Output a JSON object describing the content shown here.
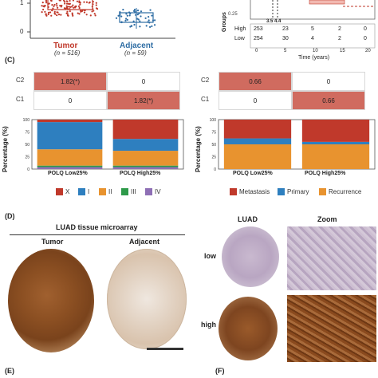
{
  "panel_top": {
    "groups": [
      {
        "label": "Tumor",
        "n_label": "(n = 516)"
      },
      {
        "label": "Adjacent",
        "n_label": "(n = 59)"
      }
    ],
    "y_tick": "0",
    "y_tick_top": "1",
    "colors": {
      "tumor": "#c0392b",
      "adjacent": "#2e6da4"
    }
  },
  "panel_km": {
    "at_risk_threshold_labels": "3.5 4.4",
    "groups_axis_label": "Groups",
    "rows": [
      {
        "name": "High",
        "values": [
          "253",
          "23",
          "5",
          "2",
          "0"
        ]
      },
      {
        "name": "Low",
        "values": [
          "254",
          "30",
          "4",
          "2",
          "0"
        ]
      }
    ],
    "x_ticks": [
      "0",
      "5",
      "10",
      "15",
      "20"
    ],
    "x_label": "Time (years)",
    "top_tick": "0.25"
  },
  "panel_c": {
    "letter": "(C)",
    "left": {
      "rows": [
        "C2",
        "C1"
      ],
      "cells": [
        [
          "1.82(*)",
          "0"
        ],
        [
          "0",
          "1.82(*)"
        ]
      ],
      "ylabel": "Percentage (%)",
      "yticks": [
        "100",
        "75",
        "50",
        "25",
        "0"
      ],
      "categories": [
        "POLQ Low25%",
        "POLQ High25%"
      ],
      "legend": [
        {
          "name": "X",
          "color": "#c0392b"
        },
        {
          "name": "I",
          "color": "#2e7fbf"
        },
        {
          "name": "II",
          "color": "#e8932f"
        },
        {
          "name": "III",
          "color": "#2e9a4a"
        },
        {
          "name": "IV",
          "color": "#8e6fb5"
        }
      ]
    },
    "right": {
      "rows": [
        "C2",
        "C1"
      ],
      "cells": [
        [
          "0.66",
          "0"
        ],
        [
          "0",
          "0.66"
        ]
      ],
      "ylabel": "Percentage (%)",
      "yticks": [
        "100",
        "75",
        "50",
        "25",
        "0"
      ],
      "categories": [
        "POLQ Low25%",
        "POLQ High25%"
      ],
      "legend": [
        {
          "name": "Metastasis",
          "color": "#c0392b"
        },
        {
          "name": "Primary",
          "color": "#2e7fbf"
        },
        {
          "name": "Recurrence",
          "color": "#e8932f"
        }
      ]
    }
  },
  "chart_data": [
    {
      "type": "bar",
      "stacked": true,
      "ylabel": "Percentage (%)",
      "ylim": [
        0,
        100
      ],
      "categories": [
        "POLQ Low25%",
        "POLQ High25%"
      ],
      "series": [
        {
          "name": "IV",
          "values": [
            4,
            4
          ]
        },
        {
          "name": "III",
          "values": [
            3,
            3
          ]
        },
        {
          "name": "II",
          "values": [
            33,
            30
          ]
        },
        {
          "name": "I",
          "values": [
            55,
            24
          ]
        },
        {
          "name": "X",
          "values": [
            5,
            39
          ]
        }
      ]
    },
    {
      "type": "bar",
      "stacked": true,
      "ylabel": "Percentage (%)",
      "ylim": [
        0,
        100
      ],
      "categories": [
        "POLQ Low25%",
        "POLQ High25%"
      ],
      "series": [
        {
          "name": "Recurrence",
          "values": [
            50,
            50
          ]
        },
        {
          "name": "Primary",
          "values": [
            12,
            5
          ]
        },
        {
          "name": "Metastasis",
          "values": [
            38,
            45
          ]
        }
      ]
    }
  ],
  "panel_d": {
    "letter": "(D)",
    "title": "LUAD  tissue microarray",
    "tumor": "Tumor",
    "adjacent": "Adjacent"
  },
  "panel_right_ihc": {
    "luad": "LUAD",
    "zoom": "Zoom",
    "low": "low",
    "high": "high"
  },
  "bottom": {
    "e": "(E)",
    "f": "(F)"
  }
}
